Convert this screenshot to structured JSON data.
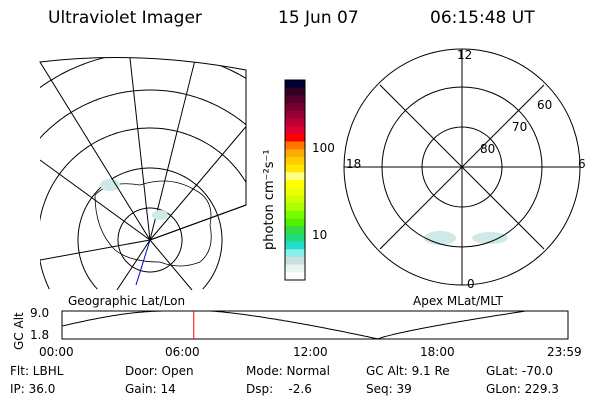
{
  "header": {
    "instrument": "Ultraviolet Imager",
    "date": "15 Jun 07",
    "time": "06:15:48 UT"
  },
  "colorbar": {
    "unit_label": "photon cm⁻²s⁻¹",
    "ticks": [
      "100",
      "10"
    ],
    "scale": "log",
    "colors": [
      "#000033",
      "#330022",
      "#55002a",
      "#770030",
      "#990033",
      "#bb0033",
      "#dd0033",
      "#ff0000",
      "#ff7700",
      "#ffaa00",
      "#ffcc00",
      "#ffe600",
      "#ffff88",
      "#ffff00",
      "#eeff00",
      "#ccff00",
      "#aaff00",
      "#77ff00",
      "#55ee00",
      "#33dd44",
      "#22dd77",
      "#22ddcc",
      "#88eeee",
      "#cce0e0",
      "#e8f4ee",
      "#ffffff"
    ]
  },
  "left_map": {
    "label": "Geographic Lat/Lon"
  },
  "right_map": {
    "label": "Apex MLat/MLT",
    "mlt_labels": [
      "12",
      "18",
      "6",
      "0"
    ],
    "lat_labels": [
      "80",
      "70",
      "60"
    ]
  },
  "altitude_plot": {
    "ylabel": "GC Alt",
    "yticks": [
      "9.0",
      "1.8"
    ],
    "xticks": [
      "00:00",
      "06:00",
      "12:00",
      "18:00",
      "23:59"
    ],
    "current_time_marker": "06:15",
    "marker_color": "#ff0000"
  },
  "info": {
    "row1": [
      "Flt: LBHL",
      "Door: Open",
      "Mode: Normal",
      "GC Alt: 9.1 Re",
      "GLat: -70.0"
    ],
    "row2": [
      "IP: 36.0",
      "Gain: 14",
      "Dsp:    -2.6",
      "Seq: 39",
      "GLon: 229.3"
    ]
  }
}
